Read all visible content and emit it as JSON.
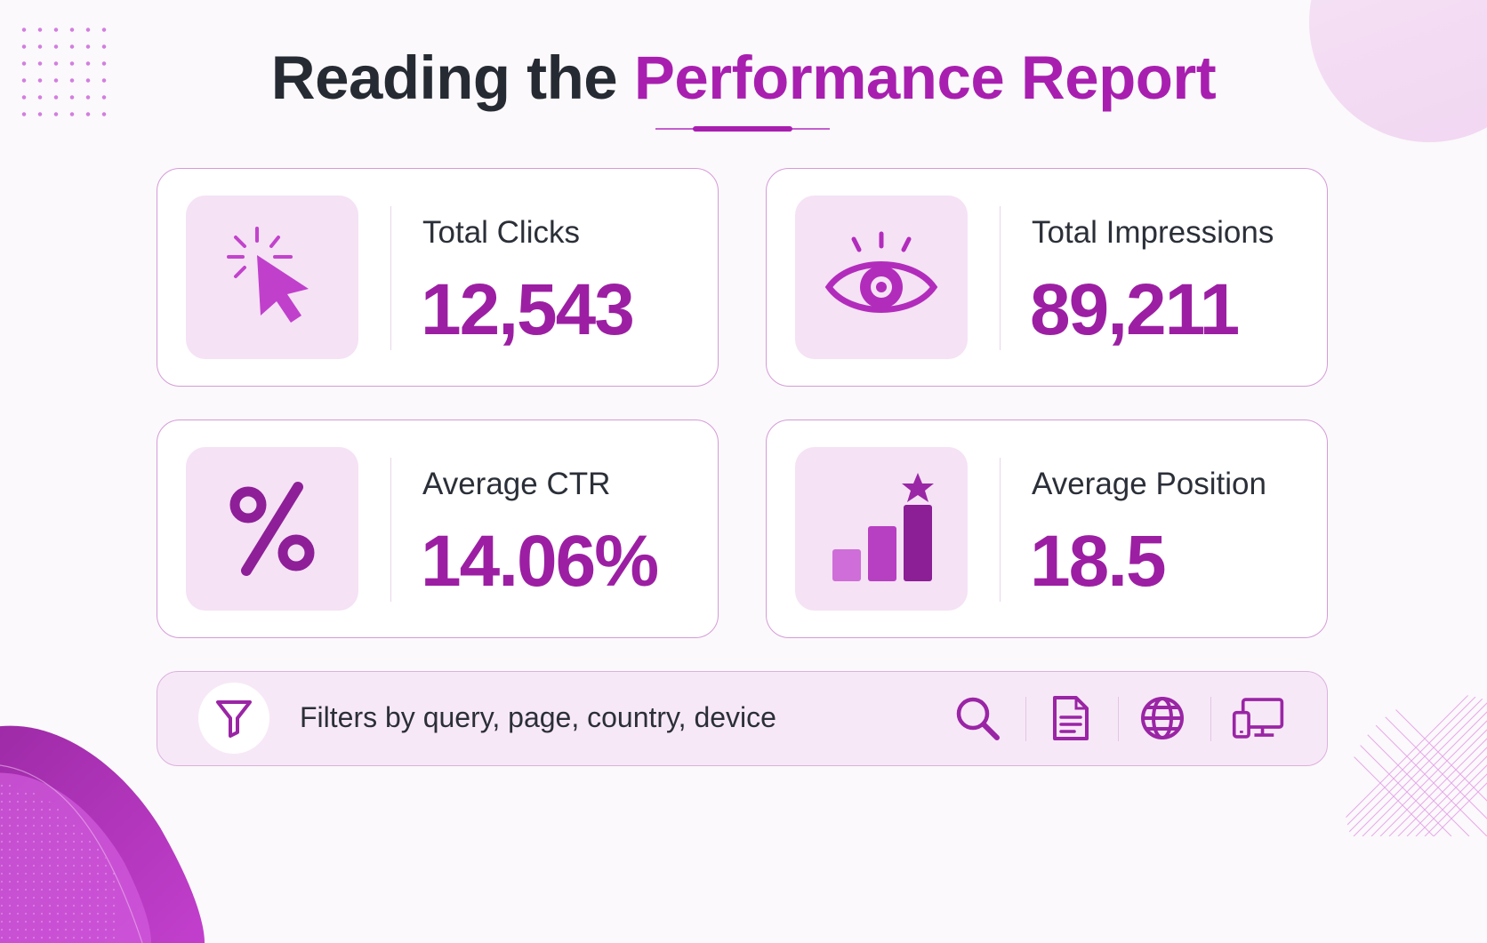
{
  "header": {
    "title_part1": "Reading the",
    "title_part2": "Performance Report"
  },
  "metrics": [
    {
      "label": "Total Clicks",
      "value": "12,543",
      "icon": "cursor-click-icon"
    },
    {
      "label": "Total Impressions",
      "value": "89,211",
      "icon": "eye-icon"
    },
    {
      "label": "Average CTR",
      "value": "14.06%",
      "icon": "percent-icon"
    },
    {
      "label": "Average Position",
      "value": "18.5",
      "icon": "bar-chart-star-icon"
    }
  ],
  "filter_bar": {
    "text": "Filters by query, page, country, device",
    "icons": [
      "filter-icon",
      "search-icon",
      "document-icon",
      "globe-icon",
      "devices-icon"
    ]
  },
  "colors": {
    "accent": "#a81fb0",
    "accent_light": "#f5e2f5",
    "title_dark": "#262b33",
    "card_border": "#d69ad9"
  }
}
